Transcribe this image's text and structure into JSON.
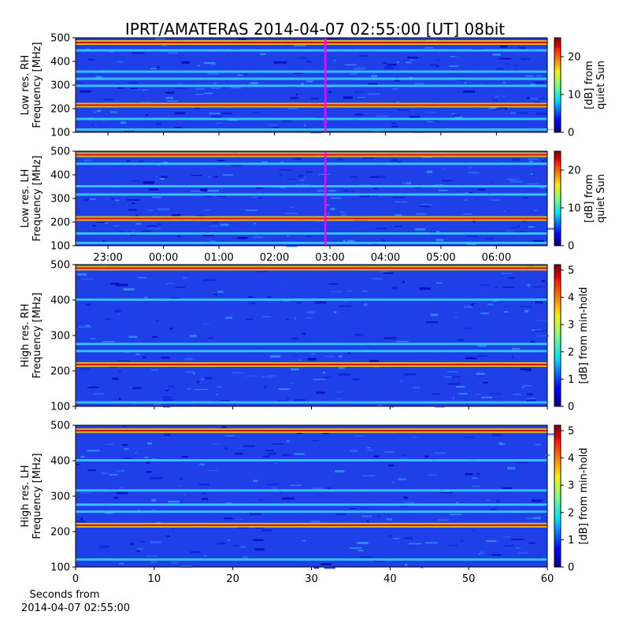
{
  "title": "IPRT/AMATERAS 2014-04-07 02:55:00 [UT]   08bit",
  "chart_data": [
    {
      "type": "heatmap",
      "panel": "Low res. RH",
      "ylabel_lines": [
        "Low res. RH",
        "Frequency [MHz]"
      ],
      "ylim": [
        100,
        500
      ],
      "yticks": [
        100,
        200,
        300,
        400,
        500
      ],
      "x_unit": "hour UT",
      "xlim": [
        22.417,
        6.917
      ],
      "xticks_hours": [
        23,
        0,
        1,
        2,
        3,
        4,
        5,
        6
      ],
      "xticklabels": [],
      "marker_time_hour": 2.917,
      "marker_color": "#ff00ff",
      "colorbar": {
        "label_lines": [
          "[dB] from",
          "quiet Sun"
        ],
        "range": [
          0,
          25
        ],
        "ticks": [
          0,
          10,
          20
        ]
      },
      "bands_mhz": [
        480,
        445,
        355,
        325,
        295,
        215,
        155,
        110
      ]
    },
    {
      "type": "heatmap",
      "panel": "Low res. LH",
      "ylabel_lines": [
        "Low res. LH",
        "Frequency [MHz]"
      ],
      "ylim": [
        100,
        500
      ],
      "yticks": [
        100,
        200,
        300,
        400,
        500
      ],
      "x_unit": "hour UT",
      "xlim": [
        22.417,
        6.917
      ],
      "xticks_hours": [
        23,
        0,
        1,
        2,
        3,
        4,
        5,
        6
      ],
      "xticklabels": [
        "23:00",
        "00:00",
        "01:00",
        "02:00",
        "03:00",
        "04:00",
        "05:00",
        "06:00"
      ],
      "marker_time_hour": 2.917,
      "marker_color": "#ff00ff",
      "colorbar": {
        "label_lines": [
          "[dB] from",
          "quiet Sun"
        ],
        "range": [
          0,
          25
        ],
        "ticks": [
          0,
          10,
          20
        ]
      },
      "bands_mhz": [
        485,
        445,
        350,
        315,
        215,
        150,
        110
      ]
    },
    {
      "type": "heatmap",
      "panel": "High res. RH",
      "ylabel_lines": [
        "High res. RH",
        "Frequency [MHz]"
      ],
      "ylim": [
        100,
        500
      ],
      "yticks": [
        100,
        200,
        300,
        400,
        500
      ],
      "x_unit": "seconds",
      "xlim": [
        0,
        60
      ],
      "xticks": [
        0,
        10,
        20,
        30,
        40,
        50,
        60
      ],
      "xticklabels": [],
      "colorbar": {
        "label_lines": [
          "[dB] from min-hold"
        ],
        "range": [
          0,
          5.2
        ],
        "ticks": [
          0,
          1,
          2,
          3,
          4,
          5
        ]
      },
      "bands_mhz": [
        490,
        400,
        275,
        255,
        218,
        110
      ]
    },
    {
      "type": "heatmap",
      "panel": "High res. LH",
      "ylabel_lines": [
        "High res. LH",
        "Frequency [MHz]"
      ],
      "ylim": [
        100,
        500
      ],
      "yticks": [
        100,
        200,
        300,
        400,
        500
      ],
      "x_unit": "seconds",
      "xlim": [
        0,
        60
      ],
      "xticks": [
        0,
        10,
        20,
        30,
        40,
        50,
        60
      ],
      "xticklabels": [
        "0",
        "10",
        "20",
        "30",
        "40",
        "50",
        "60"
      ],
      "xlabel_lines": [
        "Seconds from",
        "2014-04-07 02:55:00"
      ],
      "colorbar": {
        "label_lines": [
          "[dB] from min-hold"
        ],
        "range": [
          0,
          5.2
        ],
        "ticks": [
          0,
          1,
          2,
          3,
          4,
          5
        ]
      },
      "bands_mhz": [
        485,
        400,
        315,
        275,
        255,
        218,
        120
      ]
    }
  ]
}
